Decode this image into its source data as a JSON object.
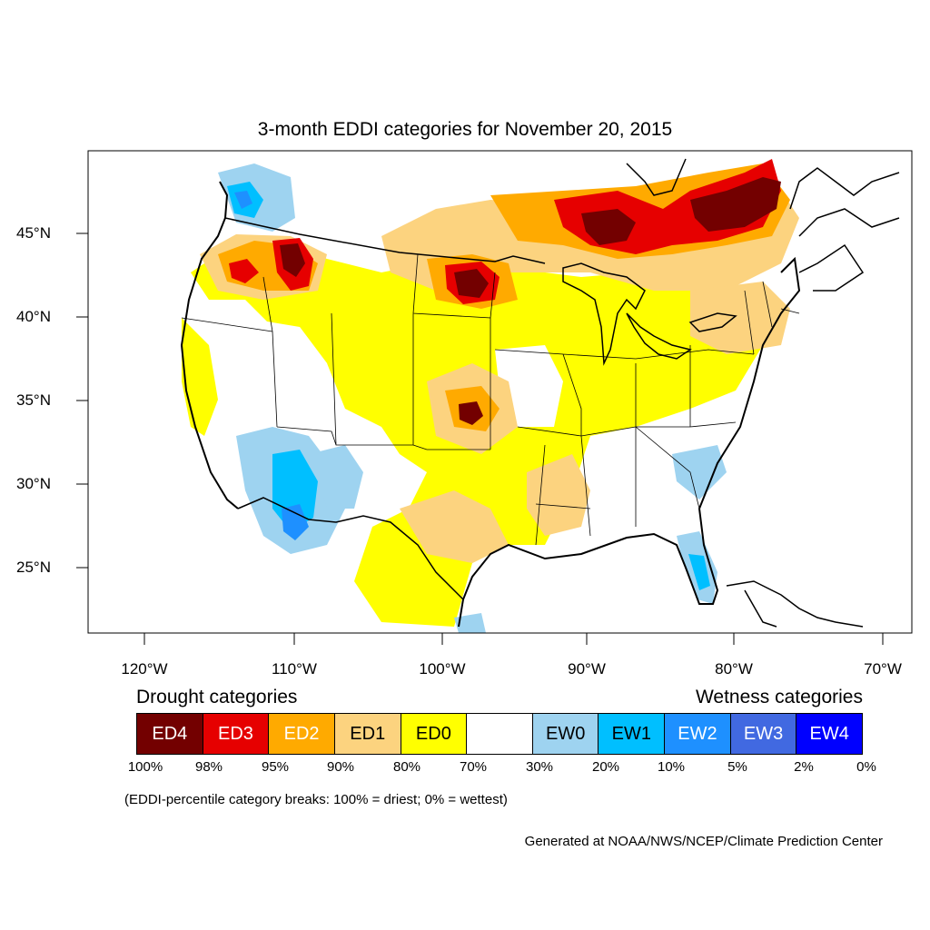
{
  "title": "3-month EDDI categories for November 20, 2015",
  "lat_labels": [
    "45°N",
    "40°N",
    "35°N",
    "30°N",
    "25°N"
  ],
  "lon_labels": [
    "120°W",
    "110°W",
    "100°W",
    "90°W",
    "80°W",
    "70°W"
  ],
  "legend": {
    "drought_heading": "Drought categories",
    "wetness_heading": "Wetness categories",
    "categories": [
      {
        "label": "ED4",
        "color": "#730000",
        "text_color": "#ffffff"
      },
      {
        "label": "ED3",
        "color": "#e60000",
        "text_color": "#ffffff"
      },
      {
        "label": "ED2",
        "color": "#ffaa00",
        "text_color": "#ffffff"
      },
      {
        "label": "ED1",
        "color": "#fcd37f",
        "text_color": "#000000"
      },
      {
        "label": "ED0",
        "color": "#ffff00",
        "text_color": "#000000"
      },
      {
        "label": "",
        "color": "#ffffff",
        "text_color": "#000000"
      },
      {
        "label": "EW0",
        "color": "#9ed3f0",
        "text_color": "#000000"
      },
      {
        "label": "EW1",
        "color": "#00bfff",
        "text_color": "#000000"
      },
      {
        "label": "EW2",
        "color": "#1e90ff",
        "text_color": "#ffffff"
      },
      {
        "label": "EW3",
        "color": "#4169e1",
        "text_color": "#ffffff"
      },
      {
        "label": "EW4",
        "color": "#0000ff",
        "text_color": "#ffffff"
      }
    ],
    "breaks": [
      "100%",
      "98%",
      "95%",
      "90%",
      "80%",
      "70%",
      "30%",
      "20%",
      "10%",
      "5%",
      "2%",
      "0%"
    ]
  },
  "note": "(EDDI-percentile category breaks: 100% = driest; 0% = wettest)",
  "credit": "Generated at NOAA/NWS/NCEP/Climate Prediction Center"
}
